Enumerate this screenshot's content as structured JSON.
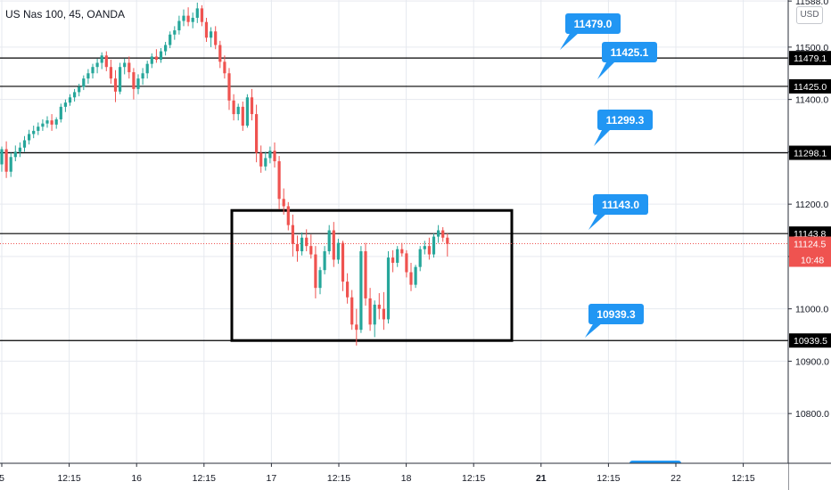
{
  "legend": {
    "symbol": "US Nas 100, 45, OANDA"
  },
  "currency": "USD",
  "colors": {
    "up": "#26a69a",
    "down": "#ef5350",
    "callout": "#2196f3",
    "grid": "#e6e9ef",
    "level": "#000000",
    "price_line": "#ef5350"
  },
  "chart_data": {
    "type": "candlestick",
    "y_axis": {
      "ticks": [
        "11588.0",
        "11500.0",
        "11400.0",
        "11300.0",
        "11200.0",
        "11100.0",
        "11000.0",
        "10900.0",
        "10800.0"
      ],
      "range": [
        10705,
        11590
      ]
    },
    "x_axis": {
      "ticks": [
        "5",
        "12:15",
        "16",
        "12:15",
        "17",
        "12:15",
        "18",
        "12:15",
        "21",
        "12:15",
        "22",
        "12:15"
      ]
    },
    "horizontal_levels": [
      {
        "price": 11479.1,
        "label": "11479.1"
      },
      {
        "price": 11425.0,
        "label": "11425.0"
      },
      {
        "price": 11298.1,
        "label": "11298.1"
      },
      {
        "price": 11143.8,
        "label": "11143.8"
      },
      {
        "price": 10939.5,
        "label": "10939.5"
      }
    ],
    "current_price": {
      "price": 11124.5,
      "label": "11124.5",
      "countdown": "10:48"
    },
    "callouts": [
      "11479.0",
      "11425.1",
      "11299.3",
      "11143.0",
      "10939.3",
      ""
    ],
    "rectangle": {
      "price_top": 11188,
      "price_bottom": 10939.5
    },
    "candles": [
      [
        11276,
        11310,
        11262,
        11305
      ],
      [
        11305,
        11320,
        11250,
        11262
      ],
      [
        11262,
        11298,
        11252,
        11290
      ],
      [
        11290,
        11312,
        11282,
        11300
      ],
      [
        11300,
        11318,
        11290,
        11308
      ],
      [
        11308,
        11330,
        11300,
        11322
      ],
      [
        11322,
        11342,
        11314,
        11334
      ],
      [
        11334,
        11350,
        11326,
        11340
      ],
      [
        11340,
        11356,
        11332,
        11348
      ],
      [
        11348,
        11362,
        11340,
        11354
      ],
      [
        11354,
        11368,
        11346,
        11360
      ],
      [
        11360,
        11372,
        11340,
        11352
      ],
      [
        11352,
        11366,
        11344,
        11362
      ],
      [
        11362,
        11392,
        11356,
        11386
      ],
      [
        11386,
        11400,
        11376,
        11394
      ],
      [
        11394,
        11410,
        11388,
        11404
      ],
      [
        11404,
        11420,
        11396,
        11414
      ],
      [
        11414,
        11430,
        11406,
        11424
      ],
      [
        11424,
        11446,
        11418,
        11440
      ],
      [
        11440,
        11458,
        11430,
        11450
      ],
      [
        11450,
        11468,
        11440,
        11462
      ],
      [
        11462,
        11478,
        11450,
        11470
      ],
      [
        11470,
        11490,
        11458,
        11484
      ],
      [
        11484,
        11492,
        11454,
        11462
      ],
      [
        11462,
        11476,
        11430,
        11440
      ],
      [
        11440,
        11456,
        11395,
        11415
      ],
      [
        11415,
        11470,
        11410,
        11462
      ],
      [
        11462,
        11478,
        11448,
        11470
      ],
      [
        11470,
        11482,
        11440,
        11452
      ],
      [
        11452,
        11460,
        11400,
        11420
      ],
      [
        11420,
        11448,
        11410,
        11440
      ],
      [
        11440,
        11460,
        11428,
        11450
      ],
      [
        11450,
        11474,
        11440,
        11468
      ],
      [
        11468,
        11488,
        11460,
        11482
      ],
      [
        11482,
        11496,
        11470,
        11476
      ],
      [
        11476,
        11498,
        11470,
        11492
      ],
      [
        11492,
        11510,
        11484,
        11504
      ],
      [
        11504,
        11530,
        11498,
        11524
      ],
      [
        11524,
        11540,
        11514,
        11532
      ],
      [
        11532,
        11560,
        11524,
        11550
      ],
      [
        11550,
        11572,
        11540,
        11560
      ],
      [
        11560,
        11576,
        11540,
        11548
      ],
      [
        11548,
        11566,
        11536,
        11556
      ],
      [
        11556,
        11585,
        11546,
        11574
      ],
      [
        11574,
        11580,
        11540,
        11548
      ],
      [
        11548,
        11556,
        11510,
        11518
      ],
      [
        11518,
        11538,
        11500,
        11530
      ],
      [
        11530,
        11540,
        11496,
        11504
      ],
      [
        11504,
        11512,
        11460,
        11472
      ],
      [
        11472,
        11484,
        11440,
        11450
      ],
      [
        11450,
        11460,
        11380,
        11398
      ],
      [
        11398,
        11410,
        11360,
        11372
      ],
      [
        11372,
        11392,
        11360,
        11386
      ],
      [
        11386,
        11396,
        11340,
        11350
      ],
      [
        11350,
        11410,
        11346,
        11404
      ],
      [
        11404,
        11420,
        11360,
        11372
      ],
      [
        11372,
        11390,
        11280,
        11298
      ],
      [
        11298,
        11312,
        11260,
        11272
      ],
      [
        11272,
        11300,
        11264,
        11288
      ],
      [
        11288,
        11310,
        11278,
        11302
      ],
      [
        11302,
        11318,
        11270,
        11282
      ],
      [
        11282,
        11292,
        11190,
        11210
      ],
      [
        11210,
        11230,
        11180,
        11196
      ],
      [
        11196,
        11204,
        11150,
        11160
      ],
      [
        11160,
        11180,
        11100,
        11124
      ],
      [
        11124,
        11140,
        11090,
        11110
      ],
      [
        11110,
        11146,
        11102,
        11136
      ],
      [
        11136,
        11152,
        11110,
        11120
      ],
      [
        11120,
        11142,
        11096,
        11104
      ],
      [
        11104,
        11120,
        11020,
        11040
      ],
      [
        11040,
        11080,
        11028,
        11074
      ],
      [
        11074,
        11120,
        11066,
        11110
      ],
      [
        11110,
        11160,
        11104,
        11150
      ],
      [
        11150,
        11166,
        11080,
        11094
      ],
      [
        11094,
        11134,
        11086,
        11126
      ],
      [
        11126,
        11130,
        11034,
        11052
      ],
      [
        11052,
        11068,
        11010,
        11022
      ],
      [
        11022,
        11036,
        10960,
        10970
      ],
      [
        10970,
        11000,
        10930,
        10960
      ],
      [
        10960,
        11120,
        10954,
        11110
      ],
      [
        11110,
        11126,
        11006,
        11020
      ],
      [
        11020,
        11040,
        10958,
        10970
      ],
      [
        10970,
        11016,
        10946,
        11008
      ],
      [
        11008,
        11030,
        10980,
        11000
      ],
      [
        11000,
        11032,
        10960,
        10980
      ],
      [
        10980,
        11110,
        10972,
        11098
      ],
      [
        11098,
        11112,
        11070,
        11088
      ],
      [
        11088,
        11120,
        11080,
        11114
      ],
      [
        11114,
        11126,
        11100,
        11106
      ],
      [
        11106,
        11112,
        11060,
        11070
      ],
      [
        11070,
        11088,
        11034,
        11046
      ],
      [
        11046,
        11084,
        11040,
        11080
      ],
      [
        11080,
        11120,
        11072,
        11114
      ],
      [
        11114,
        11130,
        11104,
        11120
      ],
      [
        11120,
        11136,
        11094,
        11104
      ],
      [
        11104,
        11144,
        11098,
        11138
      ],
      [
        11138,
        11160,
        11126,
        11150
      ],
      [
        11150,
        11156,
        11128,
        11136
      ],
      [
        11136,
        11144,
        11100,
        11124
      ]
    ]
  }
}
